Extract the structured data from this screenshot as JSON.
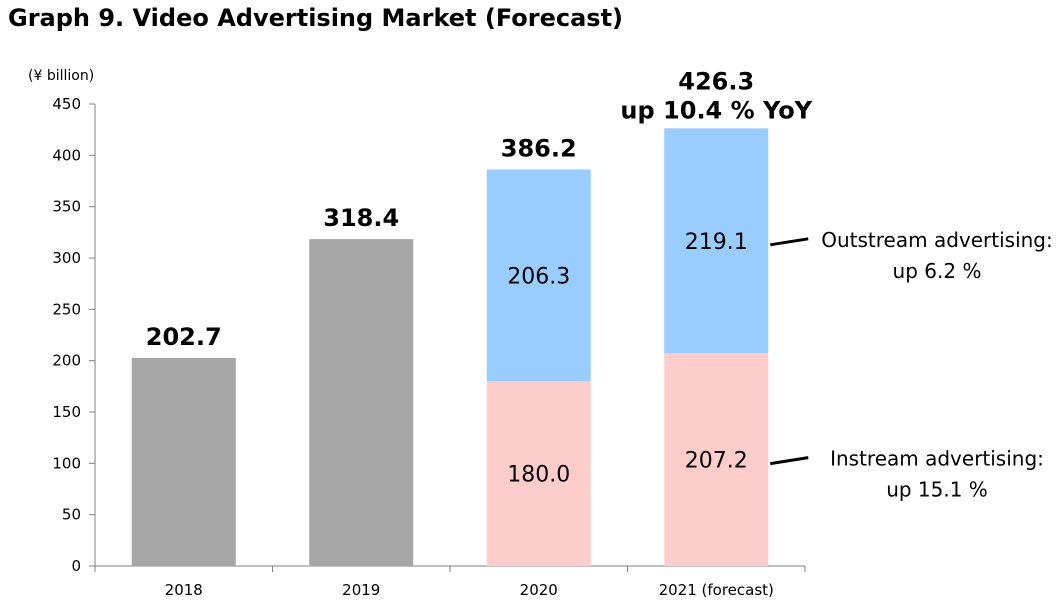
{
  "title": "Graph 9. Video Advertising Market (Forecast)",
  "chart_data": {
    "type": "bar",
    "stacked": true,
    "unit_label": "(¥ billion)",
    "categories": [
      "2018",
      "2019",
      "2020",
      "2021 (forecast)"
    ],
    "ylim": [
      0,
      450
    ],
    "yticks": [
      0,
      50,
      100,
      150,
      200,
      250,
      300,
      350,
      400,
      450
    ],
    "grid": false,
    "totals": [
      202.7,
      318.4,
      386.2,
      426.3
    ],
    "total_labels": [
      "202.7",
      "318.4",
      "386.2",
      "426.3"
    ],
    "total_extra_label": "up 10.4 % YoY",
    "series": [
      {
        "color": "#a6a6a6",
        "values": [
          202.7,
          318.4,
          null,
          null
        ]
      },
      {
        "name": "Instream advertising",
        "color": "#ffcccc",
        "values": [
          null,
          null,
          180.0,
          207.2
        ],
        "labels": [
          "",
          "",
          "180.0",
          "207.2"
        ]
      },
      {
        "name": "Outstream advertising",
        "color": "#99ccff",
        "values": [
          null,
          null,
          206.3,
          219.1
        ],
        "labels": [
          "",
          "",
          "206.3",
          "219.1"
        ]
      }
    ],
    "annotations": [
      {
        "series": "Outstream advertising",
        "lines": [
          "Outstream advertising:",
          "up 6.2 %"
        ]
      },
      {
        "series": "Instream advertising",
        "lines": [
          "Instream advertising:",
          "up 15.1 %"
        ]
      }
    ]
  }
}
